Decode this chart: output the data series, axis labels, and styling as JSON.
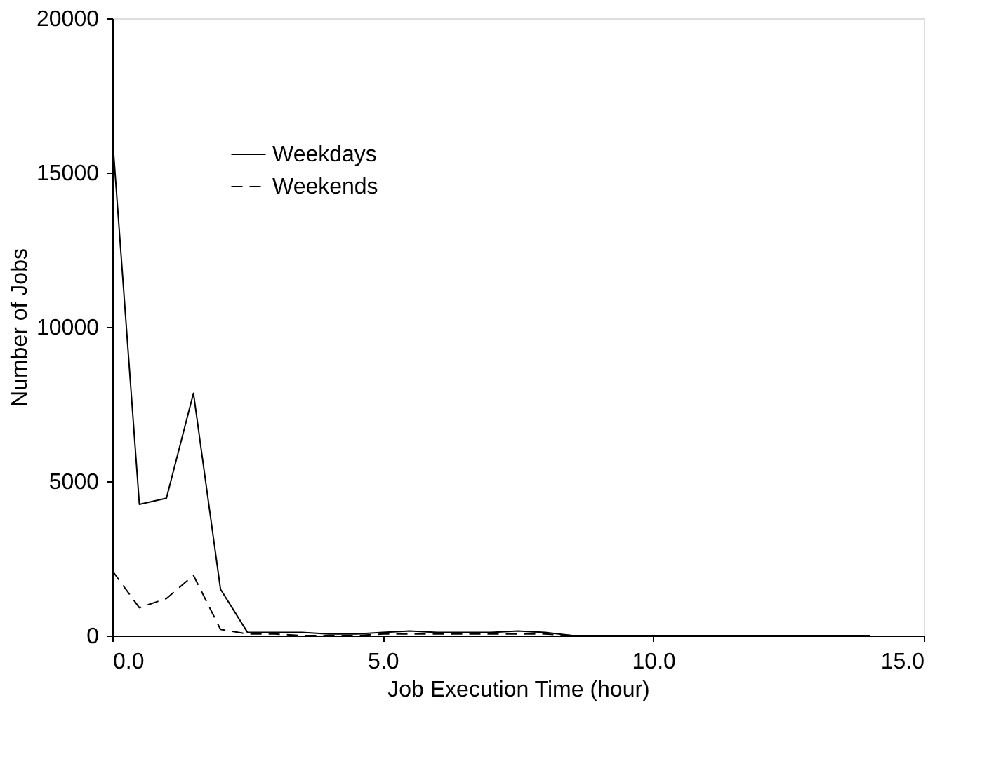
{
  "chart_data": {
    "type": "line",
    "xlabel": "Job Execution Time (hour)",
    "ylabel": "Number of Jobs",
    "x": [
      0,
      0.5,
      1.0,
      1.5,
      2.0,
      2.5,
      3.0,
      3.5,
      4.0,
      4.5,
      5.0,
      5.5,
      6.0,
      6.5,
      7.0,
      7.5,
      8.0,
      8.5,
      9.0,
      9.5,
      10.0,
      10.5,
      11.0,
      11.5,
      12.0,
      12.5,
      13.0,
      13.5,
      14.0
    ],
    "series": [
      {
        "name": "Weekdays",
        "color": "#000000",
        "line_style": "solid",
        "values": [
          16200,
          4250,
          4450,
          7850,
          1500,
          100,
          100,
          100,
          50,
          50,
          100,
          150,
          100,
          100,
          100,
          150,
          100,
          0,
          0,
          0,
          0,
          0,
          0,
          0,
          0,
          0,
          0,
          0,
          0
        ]
      },
      {
        "name": "Weekends",
        "color": "#000000",
        "line_style": "dashed",
        "values": [
          2100,
          900,
          1200,
          1950,
          200,
          50,
          50,
          0,
          0,
          0,
          50,
          50,
          50,
          50,
          50,
          50,
          50,
          0,
          0,
          0,
          0,
          0,
          0,
          0,
          0,
          0,
          0,
          0,
          0
        ]
      }
    ],
    "xlim": [
      0,
      15
    ],
    "xticks": [
      {
        "value": 0,
        "label": "0.0"
      },
      {
        "value": 5,
        "label": "5.0"
      },
      {
        "value": 10,
        "label": "10.0"
      },
      {
        "value": 15,
        "label": "15.0"
      }
    ],
    "ylim": [
      0,
      20000
    ],
    "yticks": [
      0,
      5000,
      10000,
      15000,
      20000
    ],
    "grid": false,
    "legend": "top left"
  }
}
